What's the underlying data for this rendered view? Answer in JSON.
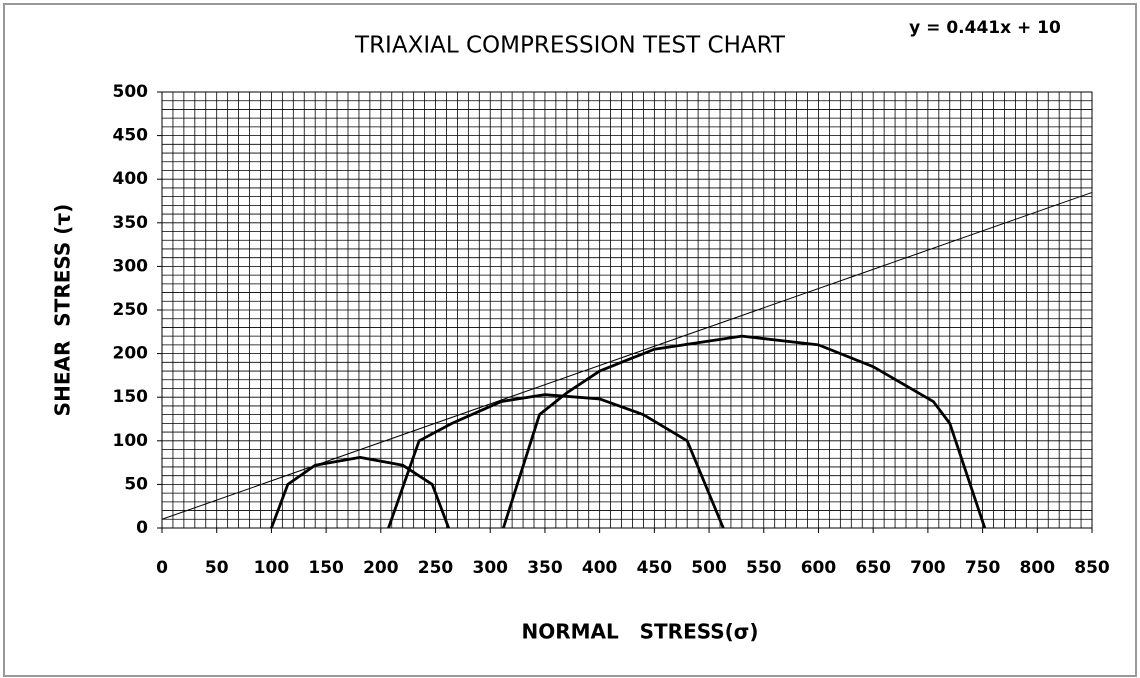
{
  "chart_data": {
    "type": "line",
    "title": "TRIAXIAL COMPRESSION TEST CHART",
    "annotation": "y = 0.441x + 10",
    "x_label": "NORMAL   STRESS(σ)",
    "y_label": "SHEAR  STRESS (τ)",
    "xlim": [
      0,
      850
    ],
    "ylim": [
      0,
      500
    ],
    "xticks": [
      0,
      50,
      100,
      150,
      200,
      250,
      300,
      350,
      400,
      450,
      500,
      550,
      600,
      650,
      700,
      750,
      800,
      850
    ],
    "yticks": [
      0,
      50,
      100,
      150,
      200,
      250,
      300,
      350,
      400,
      450,
      500
    ],
    "grid": true,
    "minor_grid_step": {
      "x": 10,
      "y": 10
    },
    "series": [
      {
        "color": "#000000",
        "x": [
          100,
          115,
          140,
          181,
          220,
          247,
          262
        ],
        "values": [
          0,
          50,
          72,
          81,
          72,
          50,
          0
        ]
      },
      {
        "color": "#000000",
        "x": [
          207,
          235,
          265,
          310,
          350,
          400,
          440,
          480,
          513
        ],
        "values": [
          0,
          100,
          120,
          145,
          153,
          148,
          130,
          100,
          0
        ]
      },
      {
        "color": "#000000",
        "x": [
          312,
          345,
          370,
          400,
          450,
          530,
          600,
          650,
          705,
          720,
          752
        ],
        "values": [
          0,
          130,
          155,
          180,
          205,
          220,
          210,
          185,
          145,
          120,
          0
        ]
      },
      {
        "color": "#000000",
        "x": [
          0,
          850
        ],
        "values": [
          10,
          384.85
        ]
      }
    ]
  }
}
